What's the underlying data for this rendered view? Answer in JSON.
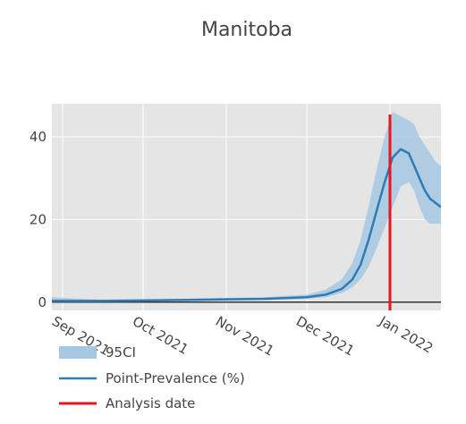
{
  "chart_data": {
    "type": "line",
    "title": "Manitoba",
    "xlabel": "",
    "ylabel": "",
    "x_range": [
      "2021-08-28",
      "2022-01-20"
    ],
    "ylim": [
      -2,
      48
    ],
    "grid": true,
    "y_ticks": [
      0,
      20,
      40
    ],
    "x_ticks": [
      {
        "date": "2021-09-01",
        "label": "Sep 2021"
      },
      {
        "date": "2021-10-01",
        "label": "Oct 2021"
      },
      {
        "date": "2021-11-01",
        "label": "Nov 2021"
      },
      {
        "date": "2021-12-01",
        "label": "Dec 2021"
      },
      {
        "date": "2022-01-01",
        "label": "Jan 2022"
      }
    ],
    "x": [
      "2021-08-28",
      "2021-09-15",
      "2021-10-15",
      "2021-11-15",
      "2021-12-01",
      "2021-12-08",
      "2021-12-14",
      "2021-12-18",
      "2021-12-21",
      "2021-12-24",
      "2021-12-27",
      "2021-12-30",
      "2022-01-02",
      "2022-01-05",
      "2022-01-08",
      "2022-01-10",
      "2022-01-12",
      "2022-01-14",
      "2022-01-16",
      "2022-01-18",
      "2022-01-20"
    ],
    "series": [
      {
        "name": "Point-Prevalence (%)",
        "color": "#2e7bb5",
        "values": [
          0.3,
          0.3,
          0.5,
          0.8,
          1.2,
          1.8,
          3.2,
          5.5,
          9,
          15,
          22,
          29,
          35,
          37,
          36,
          33,
          30,
          27,
          25,
          24,
          23
        ]
      }
    ],
    "band": {
      "name": "95CI",
      "color": "#a6c8e3",
      "upper": [
        1.2,
        0.6,
        0.8,
        1.2,
        1.8,
        3,
        5.5,
        9.5,
        15,
        23,
        32,
        40,
        46,
        45,
        44,
        43,
        40,
        38,
        36,
        34,
        33
      ],
      "lower": [
        0.1,
        0.1,
        0.3,
        0.5,
        0.8,
        1.2,
        2.2,
        3.6,
        5.5,
        8.5,
        13,
        18,
        23,
        28,
        29,
        27,
        23,
        20,
        19,
        19,
        19
      ]
    },
    "vline": {
      "name": "Analysis date",
      "date": "2022-01-01",
      "color": "#e8141e"
    },
    "legend": {
      "position": "bottom-left",
      "entries": [
        {
          "label": "95CI",
          "color": "#a6c8e3"
        },
        {
          "label": "Point-Prevalence (%)",
          "color": "#2e7bb5"
        },
        {
          "label": "Analysis date",
          "color": "#e8141e"
        }
      ]
    }
  }
}
